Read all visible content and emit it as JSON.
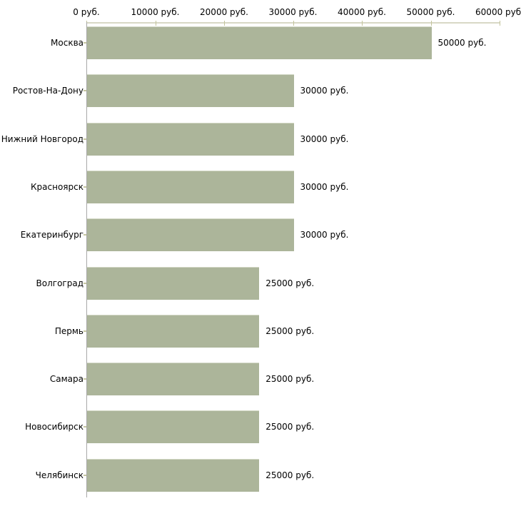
{
  "chart_data": {
    "type": "bar",
    "orientation": "horizontal",
    "title": "",
    "xlabel": "",
    "ylabel": "",
    "categories": [
      "Москва",
      "Ростов-На-Дону",
      "Нижний Новгород",
      "Красноярск",
      "Екатеринбург",
      "Волгоград",
      "Пермь",
      "Самара",
      "Новосибирск",
      "Челябинск"
    ],
    "values": [
      50000,
      30000,
      30000,
      30000,
      30000,
      25000,
      25000,
      25000,
      25000,
      25000
    ],
    "value_labels": [
      "50000 руб.",
      "30000 руб.",
      "30000 руб.",
      "30000 руб.",
      "30000 руб.",
      "25000 руб.",
      "25000 руб.",
      "25000 руб.",
      "25000 руб.",
      "25000 руб."
    ],
    "x_ticks": [
      {
        "value": 0,
        "label": "0 руб."
      },
      {
        "value": 10000,
        "label": "10000 руб."
      },
      {
        "value": 20000,
        "label": "20000 руб."
      },
      {
        "value": 30000,
        "label": "30000 руб."
      },
      {
        "value": 40000,
        "label": "40000 руб."
      },
      {
        "value": 50000,
        "label": "50000 руб."
      },
      {
        "value": 60000,
        "label": "60000 руб."
      }
    ],
    "xlim": [
      0,
      60000
    ],
    "grid": false,
    "legend": false,
    "colors": {
      "bar_fill": "#acb59a",
      "bar_top_edge": "#d3d8c6",
      "x_axis_line": "#d8d8c6",
      "x_tick_mark": "#c3c49c",
      "y_axis_line": "#a8a8a8",
      "category_tick": "#c6c7a2",
      "text": "#000000"
    }
  }
}
